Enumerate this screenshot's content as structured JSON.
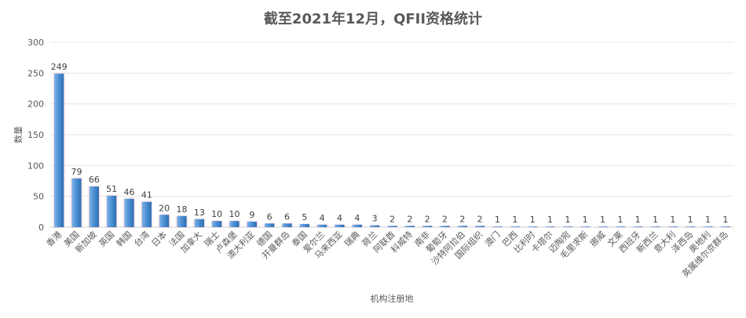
{
  "chart_data": {
    "type": "bar",
    "title": "截至2021年12月，QFII资格统计",
    "xlabel": "机构注册地",
    "ylabel": "数量",
    "ylim": [
      0,
      300
    ],
    "yticks": [
      0,
      50,
      100,
      150,
      200,
      250,
      300
    ],
    "grid": true,
    "categories": [
      "香港",
      "美国",
      "新加坡",
      "英国",
      "韩国",
      "台湾",
      "日本",
      "法国",
      "加拿大",
      "瑞士",
      "卢森堡",
      "澳大利亚",
      "德国",
      "开曼群岛",
      "泰国",
      "爱尔兰",
      "马来西亚",
      "瑞典",
      "荷兰",
      "阿联酋",
      "科威特",
      "南非",
      "葡萄牙",
      "沙特阿拉伯",
      "国际组织",
      "澳门",
      "巴西",
      "比利时",
      "卡塔尔",
      "迈陶宛",
      "毛里求斯",
      "挪威",
      "文莱",
      "西班牙",
      "新西兰",
      "意大利",
      "泽西岛",
      "奥地利",
      "英属维尔京群岛"
    ],
    "values": [
      249,
      79,
      66,
      51,
      46,
      41,
      20,
      18,
      13,
      10,
      10,
      9,
      6,
      6,
      5,
      4,
      4,
      4,
      3,
      2,
      2,
      2,
      2,
      2,
      2,
      1,
      1,
      1,
      1,
      1,
      1,
      1,
      1,
      1,
      1,
      1,
      1,
      1,
      1
    ],
    "bar_color": "#5B9BD5"
  }
}
